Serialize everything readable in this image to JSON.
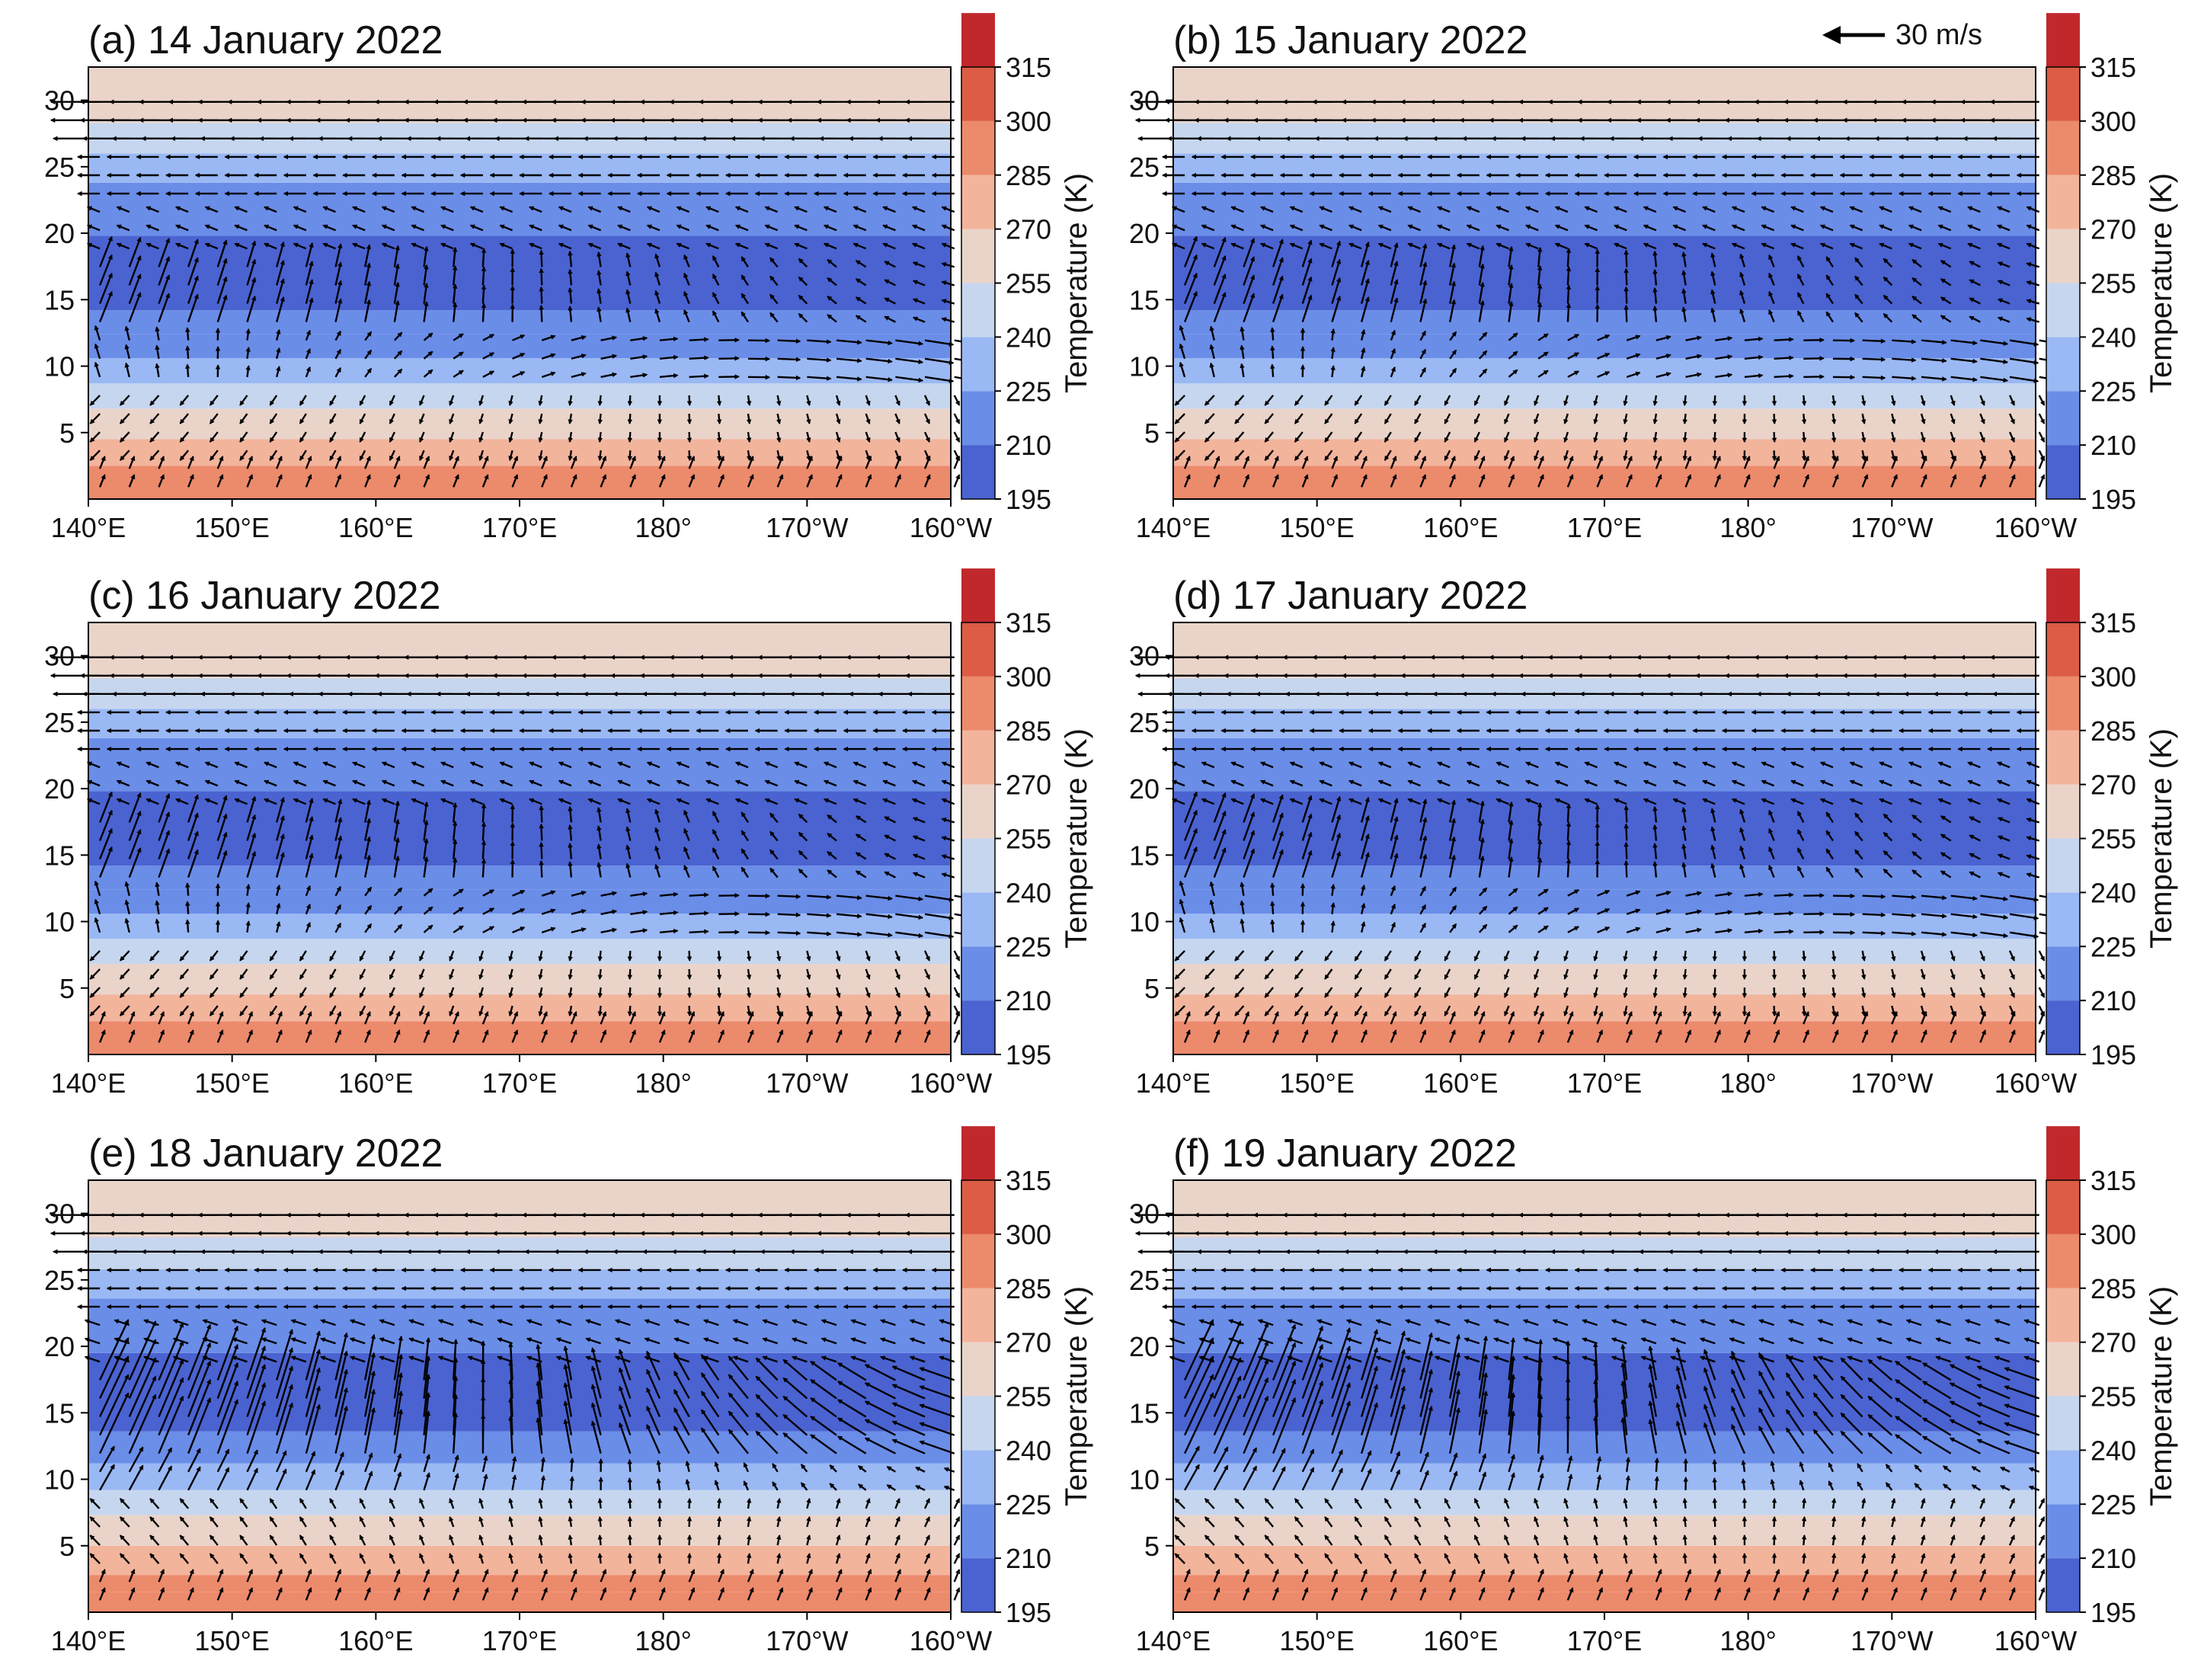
{
  "figure": {
    "scale_arrow_label": "30 m/s",
    "x_tick_labels": [
      "140°E",
      "150°E",
      "160°E",
      "170°E",
      "180°",
      "170°W",
      "160°W"
    ],
    "y_tick_labels": [
      "5",
      "10",
      "15",
      "20",
      "25",
      "30"
    ],
    "colorbar_label": "Temperature (K)",
    "colorbar_ticks": [
      "195",
      "210",
      "225",
      "240",
      "255",
      "270",
      "285",
      "300",
      "315"
    ],
    "colorbar_colors": [
      "#4a63d1",
      "#6a8de8",
      "#9ab8f4",
      "#c6d6ef",
      "#ead4c9",
      "#f3b49c",
      "#ec8a6c",
      "#dc5c45",
      "#c0282c"
    ]
  },
  "chart_data": [
    {
      "type": "heatmap",
      "title": "(a) 14 January 2022",
      "variable": "Temperature (K)",
      "xlabel": "",
      "ylabel": "",
      "xlim": [
        140,
        200
      ],
      "ylim": [
        0,
        32.5
      ],
      "x": [
        "140°E",
        "150°E",
        "160°E",
        "170°E",
        "180°",
        "170°W",
        "160°W"
      ],
      "colorbar_range": [
        195,
        315
      ],
      "temperature_layers_K": [
        {
          "z_min": 0,
          "z_max": 2.5,
          "T": 285
        },
        {
          "z_min": 2.5,
          "z_max": 4.5,
          "T": 270
        },
        {
          "z_min": 4.5,
          "z_max": 6.8,
          "T": 255
        },
        {
          "z_min": 6.8,
          "z_max": 8.7,
          "T": 240
        },
        {
          "z_min": 8.7,
          "z_max": 10.6,
          "T": 225
        },
        {
          "z_min": 10.6,
          "z_max": 12.4,
          "T": 210
        },
        {
          "z_min": 12.4,
          "z_max": 14.2,
          "T": 210
        },
        {
          "z_min": 14.2,
          "z_max": 19.8,
          "T": 195
        },
        {
          "z_min": 19.8,
          "z_max": 23.8,
          "T": 210
        },
        {
          "z_min": 23.8,
          "z_max": 26.0,
          "T": 225
        },
        {
          "z_min": 26.0,
          "z_max": 28.3,
          "T": 240
        },
        {
          "z_min": 28.3,
          "z_max": 32.5,
          "T": 255
        }
      ],
      "wind_pattern": "jan14to17"
    },
    {
      "type": "heatmap",
      "title": "(b) 15 January 2022",
      "variable": "Temperature (K)",
      "xlabel": "",
      "ylabel": "",
      "xlim": [
        140,
        200
      ],
      "ylim": [
        0,
        32.5
      ],
      "x": [
        "140°E",
        "150°E",
        "160°E",
        "170°E",
        "180°",
        "170°W",
        "160°W"
      ],
      "colorbar_range": [
        195,
        315
      ],
      "temperature_layers_K": [
        {
          "z_min": 0,
          "z_max": 2.5,
          "T": 285
        },
        {
          "z_min": 2.5,
          "z_max": 4.5,
          "T": 270
        },
        {
          "z_min": 4.5,
          "z_max": 6.8,
          "T": 255
        },
        {
          "z_min": 6.8,
          "z_max": 8.7,
          "T": 240
        },
        {
          "z_min": 8.7,
          "z_max": 10.6,
          "T": 225
        },
        {
          "z_min": 10.6,
          "z_max": 12.4,
          "T": 210
        },
        {
          "z_min": 12.4,
          "z_max": 14.2,
          "T": 210
        },
        {
          "z_min": 14.2,
          "z_max": 19.8,
          "T": 195
        },
        {
          "z_min": 19.8,
          "z_max": 23.8,
          "T": 210
        },
        {
          "z_min": 23.8,
          "z_max": 26.0,
          "T": 225
        },
        {
          "z_min": 26.0,
          "z_max": 28.3,
          "T": 240
        },
        {
          "z_min": 28.3,
          "z_max": 32.5,
          "T": 255
        }
      ],
      "wind_pattern": "jan14to17"
    },
    {
      "type": "heatmap",
      "title": "(c) 16 January 2022",
      "variable": "Temperature (K)",
      "xlabel": "",
      "ylabel": "",
      "xlim": [
        140,
        200
      ],
      "ylim": [
        0,
        32.5
      ],
      "x": [
        "140°E",
        "150°E",
        "160°E",
        "170°E",
        "180°",
        "170°W",
        "160°W"
      ],
      "colorbar_range": [
        195,
        315
      ],
      "temperature_layers_K": [
        {
          "z_min": 0,
          "z_max": 2.5,
          "T": 285
        },
        {
          "z_min": 2.5,
          "z_max": 4.5,
          "T": 270
        },
        {
          "z_min": 4.5,
          "z_max": 6.8,
          "T": 255
        },
        {
          "z_min": 6.8,
          "z_max": 8.7,
          "T": 240
        },
        {
          "z_min": 8.7,
          "z_max": 10.6,
          "T": 225
        },
        {
          "z_min": 10.6,
          "z_max": 12.4,
          "T": 210
        },
        {
          "z_min": 12.4,
          "z_max": 14.2,
          "T": 210
        },
        {
          "z_min": 14.2,
          "z_max": 19.8,
          "T": 195
        },
        {
          "z_min": 19.8,
          "z_max": 23.8,
          "T": 210
        },
        {
          "z_min": 23.8,
          "z_max": 26.0,
          "T": 225
        },
        {
          "z_min": 26.0,
          "z_max": 28.3,
          "T": 240
        },
        {
          "z_min": 28.3,
          "z_max": 32.5,
          "T": 255
        }
      ],
      "wind_pattern": "jan14to17"
    },
    {
      "type": "heatmap",
      "title": "(d) 17 January 2022",
      "variable": "Temperature (K)",
      "xlabel": "",
      "ylabel": "",
      "xlim": [
        140,
        200
      ],
      "ylim": [
        0,
        32.5
      ],
      "x": [
        "140°E",
        "150°E",
        "160°E",
        "170°E",
        "180°",
        "170°W",
        "160°W"
      ],
      "colorbar_range": [
        195,
        315
      ],
      "temperature_layers_K": [
        {
          "z_min": 0,
          "z_max": 2.5,
          "T": 285
        },
        {
          "z_min": 2.5,
          "z_max": 4.5,
          "T": 270
        },
        {
          "z_min": 4.5,
          "z_max": 6.8,
          "T": 255
        },
        {
          "z_min": 6.8,
          "z_max": 8.7,
          "T": 240
        },
        {
          "z_min": 8.7,
          "z_max": 10.6,
          "T": 225
        },
        {
          "z_min": 10.6,
          "z_max": 12.4,
          "T": 210
        },
        {
          "z_min": 12.4,
          "z_max": 14.2,
          "T": 210
        },
        {
          "z_min": 14.2,
          "z_max": 19.8,
          "T": 195
        },
        {
          "z_min": 19.8,
          "z_max": 23.8,
          "T": 210
        },
        {
          "z_min": 23.8,
          "z_max": 26.0,
          "T": 225
        },
        {
          "z_min": 26.0,
          "z_max": 28.3,
          "T": 240
        },
        {
          "z_min": 28.3,
          "z_max": 32.5,
          "T": 255
        }
      ],
      "wind_pattern": "jan14to17"
    },
    {
      "type": "heatmap",
      "title": "(e) 18 January 2022",
      "variable": "Temperature (K)",
      "xlabel": "",
      "ylabel": "",
      "xlim": [
        140,
        200
      ],
      "ylim": [
        0,
        32.5
      ],
      "x": [
        "140°E",
        "150°E",
        "160°E",
        "170°E",
        "180°",
        "170°W",
        "160°W"
      ],
      "colorbar_range": [
        195,
        315
      ],
      "temperature_layers_K": [
        {
          "z_min": 0,
          "z_max": 1.5,
          "T": 285
        },
        {
          "z_min": 1.5,
          "z_max": 2.8,
          "T": 285
        },
        {
          "z_min": 2.8,
          "z_max": 5.0,
          "T": 270
        },
        {
          "z_min": 5.0,
          "z_max": 7.3,
          "T": 255
        },
        {
          "z_min": 7.3,
          "z_max": 9.2,
          "T": 240
        },
        {
          "z_min": 9.2,
          "z_max": 11.2,
          "T": 225
        },
        {
          "z_min": 11.2,
          "z_max": 13.6,
          "T": 210
        },
        {
          "z_min": 13.6,
          "z_max": 19.5,
          "T": 195
        },
        {
          "z_min": 19.5,
          "z_max": 23.6,
          "T": 210
        },
        {
          "z_min": 23.6,
          "z_max": 25.8,
          "T": 225
        },
        {
          "z_min": 25.8,
          "z_max": 28.2,
          "T": 240
        },
        {
          "z_min": 28.2,
          "z_max": 32.5,
          "T": 255
        }
      ],
      "wind_pattern": "jan18to19"
    },
    {
      "type": "heatmap",
      "title": "(f) 19 January 2022",
      "variable": "Temperature (K)",
      "xlabel": "",
      "ylabel": "",
      "xlim": [
        140,
        200
      ],
      "ylim": [
        0,
        32.5
      ],
      "x": [
        "140°E",
        "150°E",
        "160°E",
        "170°E",
        "180°",
        "170°W",
        "160°W"
      ],
      "colorbar_range": [
        195,
        315
      ],
      "temperature_layers_K": [
        {
          "z_min": 0,
          "z_max": 1.5,
          "T": 285
        },
        {
          "z_min": 1.5,
          "z_max": 2.8,
          "T": 285
        },
        {
          "z_min": 2.8,
          "z_max": 5.0,
          "T": 270
        },
        {
          "z_min": 5.0,
          "z_max": 7.3,
          "T": 255
        },
        {
          "z_min": 7.3,
          "z_max": 9.2,
          "T": 240
        },
        {
          "z_min": 9.2,
          "z_max": 11.2,
          "T": 225
        },
        {
          "z_min": 11.2,
          "z_max": 13.6,
          "T": 210
        },
        {
          "z_min": 13.6,
          "z_max": 19.5,
          "T": 195
        },
        {
          "z_min": 19.5,
          "z_max": 23.6,
          "T": 210
        },
        {
          "z_min": 23.6,
          "z_max": 25.8,
          "T": 225
        },
        {
          "z_min": 25.8,
          "z_max": 28.2,
          "T": 240
        },
        {
          "z_min": 28.2,
          "z_max": 32.5,
          "T": 255
        }
      ],
      "wind_pattern": "jan18to19"
    }
  ]
}
